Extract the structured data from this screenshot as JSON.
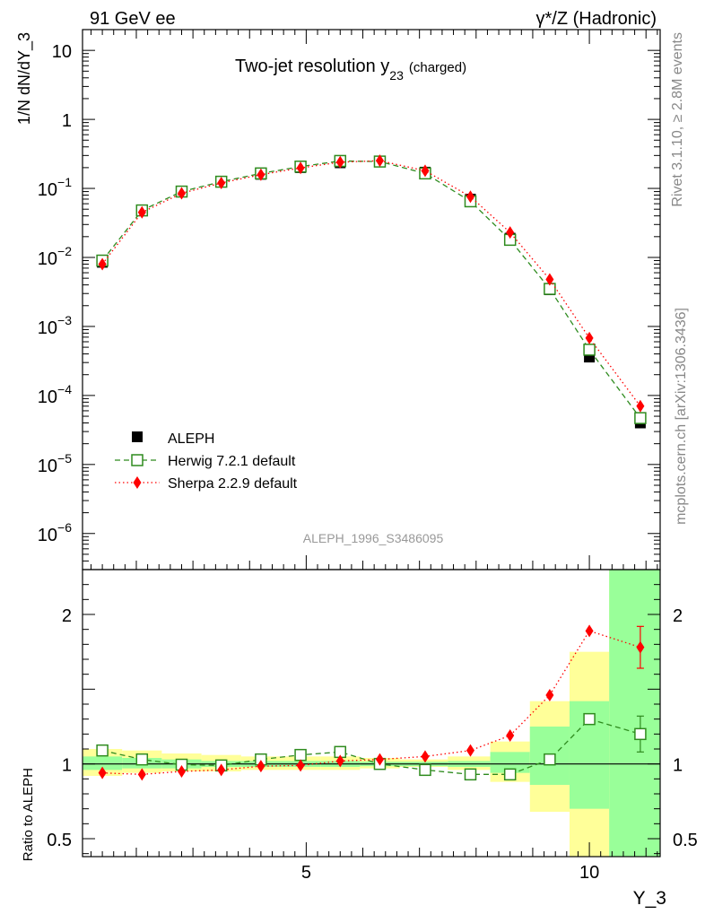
{
  "header": {
    "left": "91 GeV ee",
    "right": "γ*/Z (Hadronic)"
  },
  "side": {
    "rivet": "Rivet 3.1.10, ≥ 2.8M events",
    "mcplots": "mcplots.cern.ch [arXiv:1306.3436]"
  },
  "colors": {
    "data": "#000000",
    "herwig": "#2e8b1e",
    "sherpa": "#ff0000",
    "band_yellow": "#ffff99",
    "band_green": "#99ff99"
  },
  "chart_data": [
    {
      "type": "scatter",
      "title": "Two-jet resolution y",
      "title_sub": "23",
      "title_suffix": "(charged)",
      "ylabel": "1/N dN/dY_3",
      "analysis_label": "ALEPH_1996_S3486095",
      "yscale": "log",
      "xlim": [
        1.05,
        11.25
      ],
      "ylim": [
        3e-07,
        20
      ],
      "yticks": [
        {
          "value": 10,
          "label": "10"
        },
        {
          "value": 1,
          "label": "1"
        },
        {
          "value": 0.1,
          "label": "10",
          "exp": "−1"
        },
        {
          "value": 0.01,
          "label": "10",
          "exp": "−2"
        },
        {
          "value": 0.001,
          "label": "10",
          "exp": "−3"
        },
        {
          "value": 0.0001,
          "label": "10",
          "exp": "−4"
        },
        {
          "value": 1e-05,
          "label": "10",
          "exp": "−5"
        },
        {
          "value": 1e-06,
          "label": "10",
          "exp": "−6"
        }
      ],
      "x": [
        1.4,
        2.1,
        2.8,
        3.5,
        4.2,
        4.9,
        5.6,
        6.3,
        7.1,
        7.9,
        8.6,
        9.3,
        10.0,
        10.9
      ],
      "series": [
        {
          "name": "ALEPH",
          "style": "data",
          "values": [
            0.0085,
            0.048,
            0.09,
            0.125,
            0.16,
            0.2,
            0.235,
            0.245,
            0.172,
            0.07,
            0.019,
            0.0034,
            0.00036,
            4e-05
          ]
        },
        {
          "name": "Herwig 7.2.1 default",
          "style": "herwig",
          "values": [
            0.009,
            0.048,
            0.09,
            0.125,
            0.165,
            0.207,
            0.25,
            0.245,
            0.165,
            0.065,
            0.018,
            0.0035,
            0.00046,
            4.7e-05
          ]
        },
        {
          "name": "Sherpa 2.2.9 default",
          "style": "sherpa",
          "values": [
            0.008,
            0.045,
            0.085,
            0.12,
            0.158,
            0.198,
            0.24,
            0.252,
            0.18,
            0.076,
            0.023,
            0.0048,
            0.00068,
            7e-05
          ]
        }
      ]
    },
    {
      "type": "scatter",
      "ylabel": "Ratio to ALEPH",
      "xlabel": "Y_3",
      "xlim": [
        1.05,
        11.25
      ],
      "ylim": [
        0.38,
        2.3
      ],
      "xticks": [
        {
          "value": 5,
          "label": "5"
        },
        {
          "value": 10,
          "label": "10"
        }
      ],
      "yticks": [
        {
          "value": 2,
          "label": "2"
        },
        {
          "value": 1,
          "label": "1"
        },
        {
          "value": 0.5,
          "label": "0.5"
        }
      ],
      "x": [
        1.4,
        2.1,
        2.8,
        3.5,
        4.2,
        4.9,
        5.6,
        6.3,
        7.1,
        7.9,
        8.6,
        9.3,
        10.0,
        10.9
      ],
      "bins": [
        [
          1.05,
          1.75
        ],
        [
          1.75,
          2.45
        ],
        [
          2.45,
          3.15
        ],
        [
          3.15,
          3.85
        ],
        [
          3.85,
          4.55
        ],
        [
          4.55,
          5.25
        ],
        [
          5.25,
          5.95
        ],
        [
          5.95,
          6.65
        ],
        [
          6.65,
          7.5
        ],
        [
          7.5,
          8.25
        ],
        [
          8.25,
          8.95
        ],
        [
          8.95,
          9.65
        ],
        [
          9.65,
          10.35
        ],
        [
          10.35,
          11.25
        ]
      ],
      "band_yellow": [
        [
          0.92,
          1.1
        ],
        [
          0.94,
          1.09
        ],
        [
          0.95,
          1.07
        ],
        [
          0.95,
          1.06
        ],
        [
          0.96,
          1.05
        ],
        [
          0.96,
          1.05
        ],
        [
          0.96,
          1.05
        ],
        [
          0.97,
          1.04
        ],
        [
          0.98,
          1.03
        ],
        [
          0.96,
          1.05
        ],
        [
          0.88,
          1.15
        ],
        [
          0.68,
          1.42
        ],
        [
          0.38,
          1.75
        ],
        [
          0.38,
          2.3
        ]
      ],
      "band_green": [
        [
          0.96,
          1.05
        ],
        [
          0.97,
          1.04
        ],
        [
          0.97,
          1.03
        ],
        [
          0.98,
          1.02
        ],
        [
          0.98,
          1.02
        ],
        [
          0.98,
          1.02
        ],
        [
          0.98,
          1.02
        ],
        [
          0.985,
          1.015
        ],
        [
          0.985,
          1.015
        ],
        [
          0.98,
          1.02
        ],
        [
          0.94,
          1.08
        ],
        [
          0.86,
          1.25
        ],
        [
          0.7,
          1.42
        ],
        [
          0.38,
          2.3
        ]
      ],
      "series": [
        {
          "name": "Herwig 7.2.1 default",
          "style": "herwig",
          "values": [
            1.09,
            1.03,
            0.995,
            0.99,
            1.03,
            1.06,
            1.08,
            1.0,
            0.96,
            0.93,
            0.93,
            1.03,
            1.3,
            1.2
          ],
          "errors": [
            0,
            0,
            0,
            0,
            0,
            0,
            0,
            0,
            0,
            0,
            0,
            0,
            0,
            0.12
          ]
        },
        {
          "name": "Sherpa 2.2.9 default",
          "style": "sherpa",
          "values": [
            0.94,
            0.93,
            0.95,
            0.96,
            0.985,
            0.99,
            1.02,
            1.03,
            1.05,
            1.09,
            1.19,
            1.46,
            1.89,
            1.78
          ],
          "errors": [
            0,
            0,
            0,
            0,
            0,
            0,
            0,
            0,
            0,
            0,
            0,
            0,
            0,
            0.14
          ]
        }
      ]
    }
  ]
}
